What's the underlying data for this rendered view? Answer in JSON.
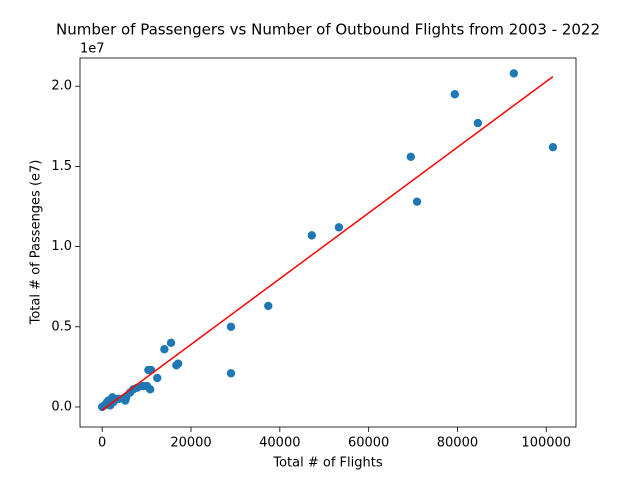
{
  "chart_data": {
    "type": "scatter",
    "title": "Number of Passengers vs Number of Outbound Flights from 2003 - 2022",
    "xlabel": "Total # of Flights",
    "ylabel": "Total # of Passenges (e7)",
    "y_offset_label": "1e7",
    "color": "#1f77b4",
    "x": [
      92700,
      79400,
      84600,
      101500,
      69500,
      70900,
      53300,
      47200,
      37400,
      29000,
      29000,
      15500,
      14000,
      17100,
      16700,
      10400,
      11000,
      12400,
      10800,
      10100,
      9200,
      7900,
      7000,
      6300,
      5400,
      5200,
      3400,
      2500,
      1800,
      1100,
      500,
      0,
      2300,
      1400,
      3800
    ],
    "values": [
      2.08,
      1.95,
      1.77,
      1.62,
      1.56,
      1.28,
      1.12,
      1.07,
      0.63,
      0.5,
      0.21,
      0.4,
      0.36,
      0.27,
      0.26,
      0.23,
      0.23,
      0.18,
      0.11,
      0.13,
      0.13,
      0.12,
      0.11,
      0.09,
      0.06,
      0.04,
      0.05,
      0.03,
      0.01,
      0.03,
      0.01,
      0,
      0.06,
      0.04,
      0.05
    ],
    "fit_line": {
      "color": "#ff0000",
      "x": [
        0,
        101500
      ],
      "values": [
        -0.02,
        2.06
      ]
    },
    "xlim": [
      -5000,
      106700
    ],
    "ylim": [
      -0.125,
      2.176
    ],
    "xticks": [
      0,
      20000,
      40000,
      60000,
      80000,
      100000
    ],
    "yticks": [
      {
        "value": 0,
        "label": "0.0"
      },
      0.5,
      {
        "value": 1,
        "label": "1.0"
      },
      1.5,
      {
        "value": 2,
        "label": "2.0"
      }
    ]
  }
}
